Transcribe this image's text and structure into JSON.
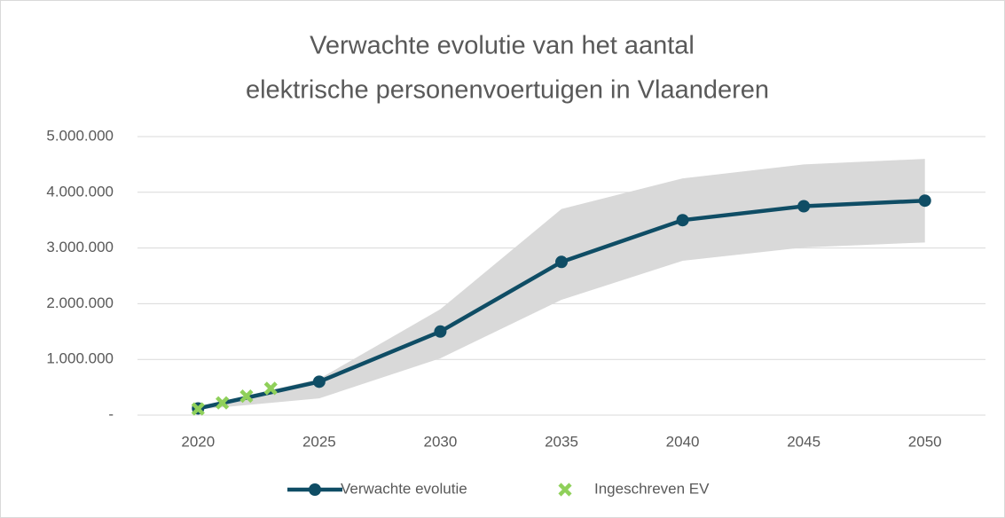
{
  "chart_data": {
    "type": "line",
    "title": [
      "Verwachte evolutie van het aantal",
      "elektrische personenvoertuigen in Vlaanderen"
    ],
    "xlim": [
      2017.5,
      2052.5
    ],
    "xticks": [
      2020,
      2025,
      2030,
      2035,
      2040,
      2045,
      2050
    ],
    "ylim": [
      0,
      5000000
    ],
    "yticks": [
      {
        "value": 0,
        "label": "-"
      },
      {
        "value": 1000000,
        "label": "1.000.000"
      },
      {
        "value": 2000000,
        "label": "2.000.000"
      },
      {
        "value": 3000000,
        "label": "3.000.000"
      },
      {
        "value": 4000000,
        "label": "4.000.000"
      },
      {
        "value": 5000000,
        "label": "5.000.000"
      }
    ],
    "grid": true,
    "legend": "bottom",
    "band": {
      "color": "#d9d9d9",
      "x": [
        2020,
        2025,
        2030,
        2035,
        2040,
        2045,
        2050
      ],
      "upper": [
        150000,
        650000,
        1900000,
        3700000,
        4250000,
        4500000,
        4600000
      ],
      "lower": [
        100000,
        300000,
        1020000,
        2070000,
        2770000,
        3010000,
        3100000
      ]
    },
    "series": [
      {
        "name": "Verwachte evolutie",
        "color": "#0f4d65",
        "marker": "circle",
        "line": true,
        "x": [
          2020,
          2025,
          2030,
          2035,
          2040,
          2045,
          2050
        ],
        "values": [
          120000,
          600000,
          1500000,
          2750000,
          3500000,
          3750000,
          3850000
        ]
      },
      {
        "name": "Ingeschreven EV",
        "color": "#8fd05a",
        "marker": "x",
        "line": false,
        "x": [
          2020,
          2021,
          2022,
          2023
        ],
        "values": [
          110000,
          220000,
          340000,
          480000
        ]
      }
    ]
  }
}
